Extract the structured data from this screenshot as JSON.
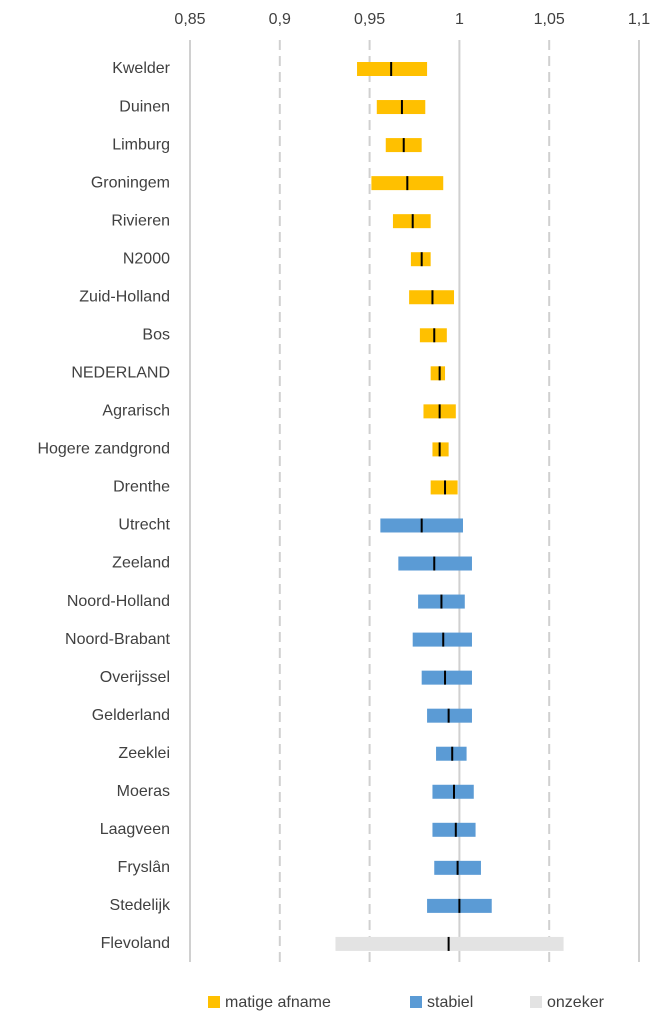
{
  "chart_data": {
    "type": "range-bar",
    "xlim": [
      0.85,
      1.1
    ],
    "xticks": [
      {
        "value": 0.85,
        "label": "0,85"
      },
      {
        "value": 0.9,
        "label": "0,9"
      },
      {
        "value": 0.95,
        "label": "0,95"
      },
      1,
      {
        "value": 1.05,
        "label": "1,05"
      },
      {
        "value": 1.1,
        "label": "1,1"
      }
    ],
    "grid": true,
    "legend": "bottom",
    "series": [
      {
        "name": "matige afname",
        "color": "#ffc000",
        "categories": [
          "Kwelder",
          "Duinen",
          "Limburg",
          "Groningem",
          "Rivieren",
          "N2000",
          "Zuid-Holland",
          "Bos",
          "NEDERLAND",
          "Agrarisch",
          "Hogere zandgrond",
          "Drenthe"
        ],
        "low": [
          0.943,
          0.954,
          0.959,
          0.951,
          0.963,
          0.973,
          0.972,
          0.978,
          0.984,
          0.98,
          0.985,
          0.984
        ],
        "estimate": [
          0.962,
          0.968,
          0.969,
          0.971,
          0.974,
          0.979,
          0.985,
          0.986,
          0.989,
          0.989,
          0.989,
          0.992
        ],
        "high": [
          0.982,
          0.981,
          0.979,
          0.991,
          0.984,
          0.984,
          0.997,
          0.993,
          0.992,
          0.998,
          0.994,
          0.999
        ]
      },
      {
        "name": "stabiel",
        "color": "#5b9bd5",
        "categories": [
          "Utrecht",
          "Zeeland",
          "Noord-Holland",
          "Noord-Brabant",
          "Overijssel",
          "Gelderland",
          "Zeeklei",
          "Moeras",
          "Laagveen",
          "Fryslân",
          "Stedelijk"
        ],
        "low": [
          0.956,
          0.966,
          0.977,
          0.974,
          0.979,
          0.982,
          0.987,
          0.985,
          0.985,
          0.986,
          0.982
        ],
        "estimate": [
          0.979,
          0.986,
          0.99,
          0.991,
          0.992,
          0.994,
          0.996,
          0.997,
          0.998,
          0.999,
          1.0
        ],
        "high": [
          1.002,
          1.007,
          1.003,
          1.007,
          1.007,
          1.007,
          1.004,
          1.008,
          1.009,
          1.012,
          1.018
        ]
      },
      {
        "name": "onzeker",
        "color": "#e3e3e3",
        "categories": [
          "Flevoland"
        ],
        "low": [
          0.931
        ],
        "estimate": [
          0.994
        ],
        "high": [
          1.058
        ]
      }
    ]
  }
}
